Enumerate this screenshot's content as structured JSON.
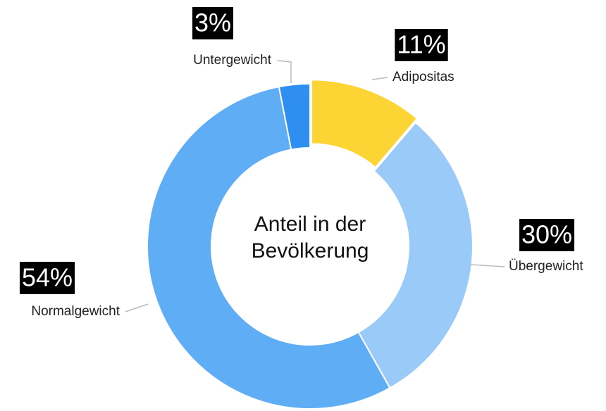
{
  "chart_data": {
    "type": "donut",
    "title": "Anteil in der Bevölkerung",
    "categories": [
      "Adipositas",
      "Übergewicht",
      "Normalgewicht",
      "Untergewicht"
    ],
    "values": [
      11,
      30,
      54,
      3
    ],
    "value_labels": [
      "11%",
      "30%",
      "54%",
      "3%"
    ],
    "colors": [
      "#fcd434",
      "#99caf8",
      "#5faef5",
      "#2f8ff0"
    ]
  }
}
